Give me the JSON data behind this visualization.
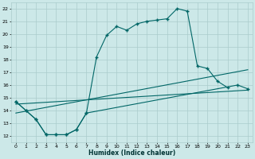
{
  "xlabel": "Humidex (Indice chaleur)",
  "background_color": "#cce8e8",
  "grid_color": "#aacccc",
  "line_color": "#006666",
  "xlim": [
    -0.5,
    23.5
  ],
  "ylim": [
    11.5,
    22.5
  ],
  "xticks": [
    0,
    1,
    2,
    3,
    4,
    5,
    6,
    7,
    8,
    9,
    10,
    11,
    12,
    13,
    14,
    15,
    16,
    17,
    18,
    19,
    20,
    21,
    22,
    23
  ],
  "yticks": [
    12,
    13,
    14,
    15,
    16,
    17,
    18,
    19,
    20,
    21,
    22
  ],
  "curve1_x": [
    0,
    1,
    2,
    3,
    4,
    5,
    6,
    7,
    8,
    9,
    10,
    11,
    12,
    13,
    14,
    15,
    16,
    17,
    18,
    19,
    20,
    21
  ],
  "curve1_y": [
    14.7,
    14.0,
    13.3,
    12.1,
    12.1,
    12.1,
    12.5,
    13.8,
    18.2,
    19.9,
    20.6,
    20.3,
    20.8,
    21.0,
    21.1,
    21.2,
    22.0,
    21.8,
    17.5,
    17.3,
    16.3,
    15.8
  ],
  "curve2_x": [
    0,
    1,
    2,
    3,
    4,
    5,
    6,
    7,
    22,
    23
  ],
  "curve2_y": [
    14.7,
    14.0,
    13.3,
    12.1,
    12.1,
    12.1,
    12.5,
    13.8,
    16.0,
    15.7
  ],
  "line3_x": [
    0,
    23
  ],
  "line3_y": [
    13.8,
    17.2
  ],
  "line4_x": [
    0,
    23
  ],
  "line4_y": [
    14.5,
    15.6
  ]
}
